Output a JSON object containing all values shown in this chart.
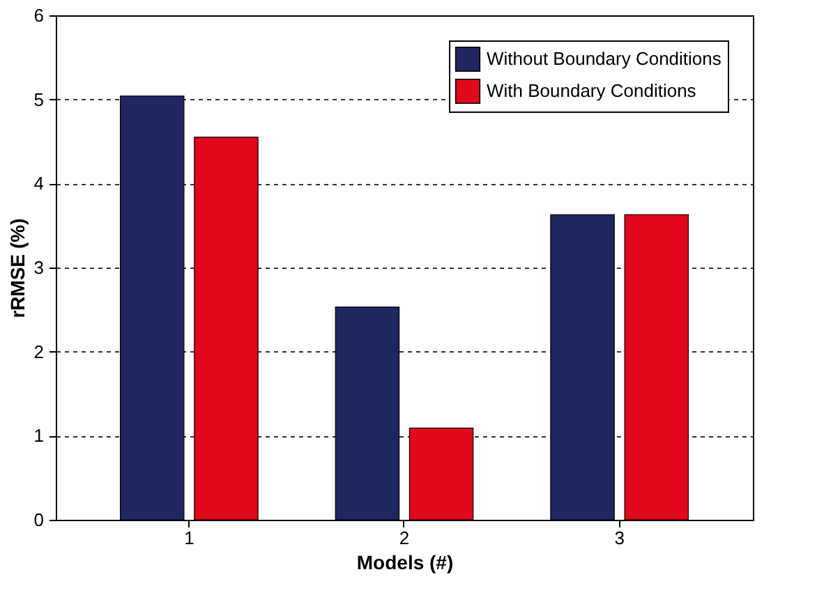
{
  "chart_data": {
    "type": "bar",
    "xlabel": "Models (#)",
    "ylabel": "rRMSE (%)",
    "categories": [
      "1",
      "2",
      "3"
    ],
    "series": [
      {
        "name": "Without Boundary Conditions",
        "color": "#1f2660",
        "values": [
          5.04,
          2.53,
          3.63
        ]
      },
      {
        "name": "With Boundary Conditions",
        "color": "#e1081b",
        "values": [
          4.55,
          1.09,
          3.63
        ]
      }
    ],
    "ylim": [
      0,
      6
    ],
    "yticks": [
      0,
      1,
      2,
      3,
      4,
      5,
      6
    ],
    "grid": "y",
    "legend": "top right"
  }
}
